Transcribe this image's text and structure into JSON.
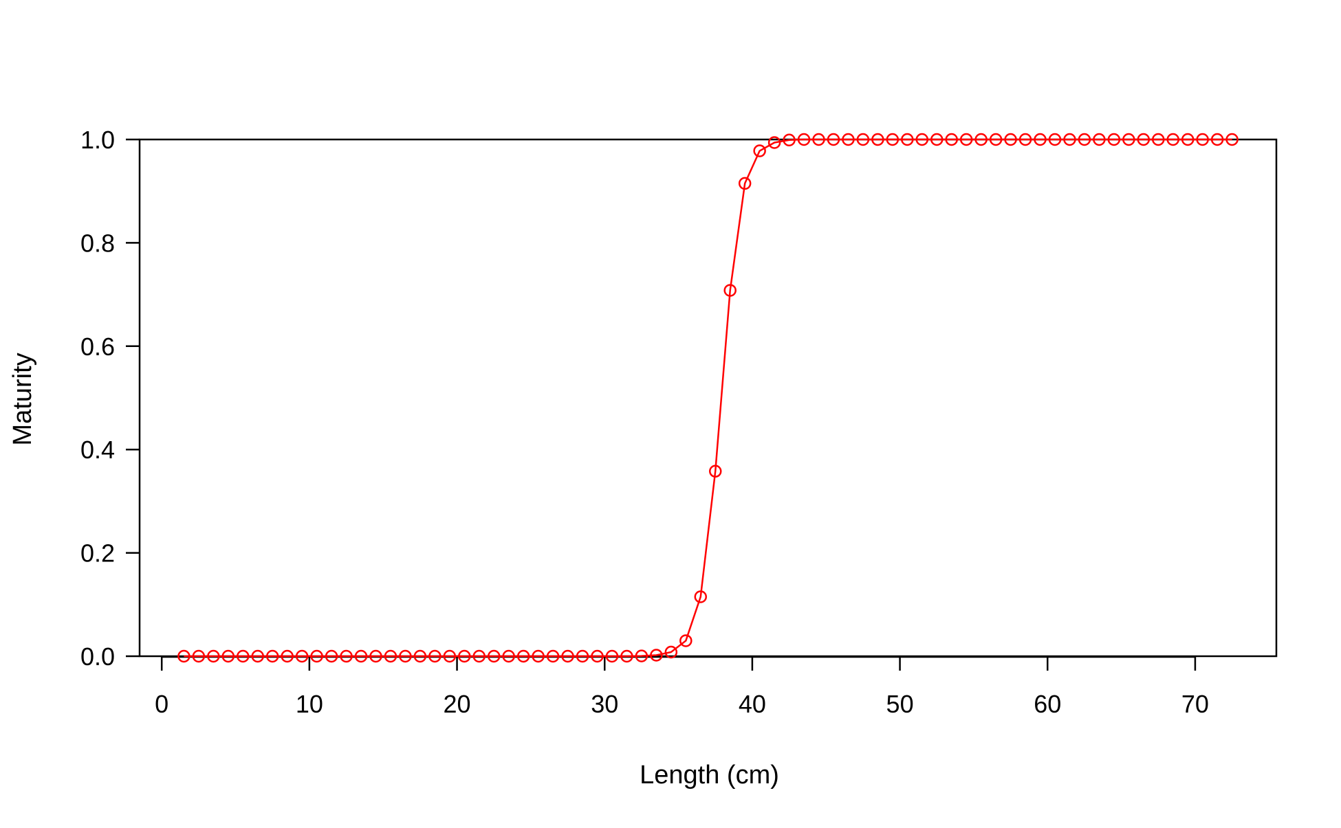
{
  "chart_data": {
    "type": "line",
    "title": "",
    "xlabel": "Length (cm)",
    "ylabel": "Maturity",
    "xlim": [
      -1.5,
      75.5
    ],
    "ylim": [
      0,
      1
    ],
    "xticks": [
      0,
      10,
      20,
      30,
      40,
      50,
      60,
      70
    ],
    "xtick_labels": [
      "0",
      "10",
      "20",
      "30",
      "40",
      "50",
      "60",
      "70"
    ],
    "yticks": [
      0,
      0.2,
      0.4,
      0.6,
      0.8,
      1.0
    ],
    "ytick_labels": [
      "0.0",
      "0.2",
      "0.4",
      "0.6",
      "0.8",
      "1.0"
    ],
    "grid": false,
    "series": [
      {
        "color": "#ff0000",
        "marker": "open-circle",
        "x": [
          1.5,
          2.5,
          3.5,
          4.5,
          5.5,
          6.5,
          7.5,
          8.5,
          9.5,
          10.5,
          11.5,
          12.5,
          13.5,
          14.5,
          15.5,
          16.5,
          17.5,
          18.5,
          19.5,
          20.5,
          21.5,
          22.5,
          23.5,
          24.5,
          25.5,
          26.5,
          27.5,
          28.5,
          29.5,
          30.5,
          31.5,
          32.5,
          33.5,
          34.5,
          35.5,
          36.5,
          37.5,
          38.5,
          39.5,
          40.5,
          41.5,
          42.5,
          43.5,
          44.5,
          45.5,
          46.5,
          47.5,
          48.5,
          49.5,
          50.5,
          51.5,
          52.5,
          53.5,
          54.5,
          55.5,
          56.5,
          57.5,
          58.5,
          59.5,
          60.5,
          61.5,
          62.5,
          63.5,
          64.5,
          65.5,
          66.5,
          67.5,
          68.5,
          69.5,
          70.5,
          71.5,
          72.5
        ],
        "y": [
          0,
          0,
          0,
          0,
          0,
          0,
          0,
          0,
          0,
          0,
          0,
          0,
          0,
          0,
          0,
          0,
          0,
          0,
          0,
          0,
          0,
          0,
          0,
          0,
          0,
          0,
          0,
          0,
          0,
          0,
          0,
          0.0005,
          0.002,
          0.008,
          0.03,
          0.115,
          0.358,
          0.708,
          0.915,
          0.978,
          0.994,
          0.999,
          1,
          1,
          1,
          1,
          1,
          1,
          1,
          1,
          1,
          1,
          1,
          1,
          1,
          1,
          1,
          1,
          1,
          1,
          1,
          1,
          1,
          1,
          1,
          1,
          1,
          1,
          1,
          1,
          1,
          1
        ]
      }
    ]
  }
}
